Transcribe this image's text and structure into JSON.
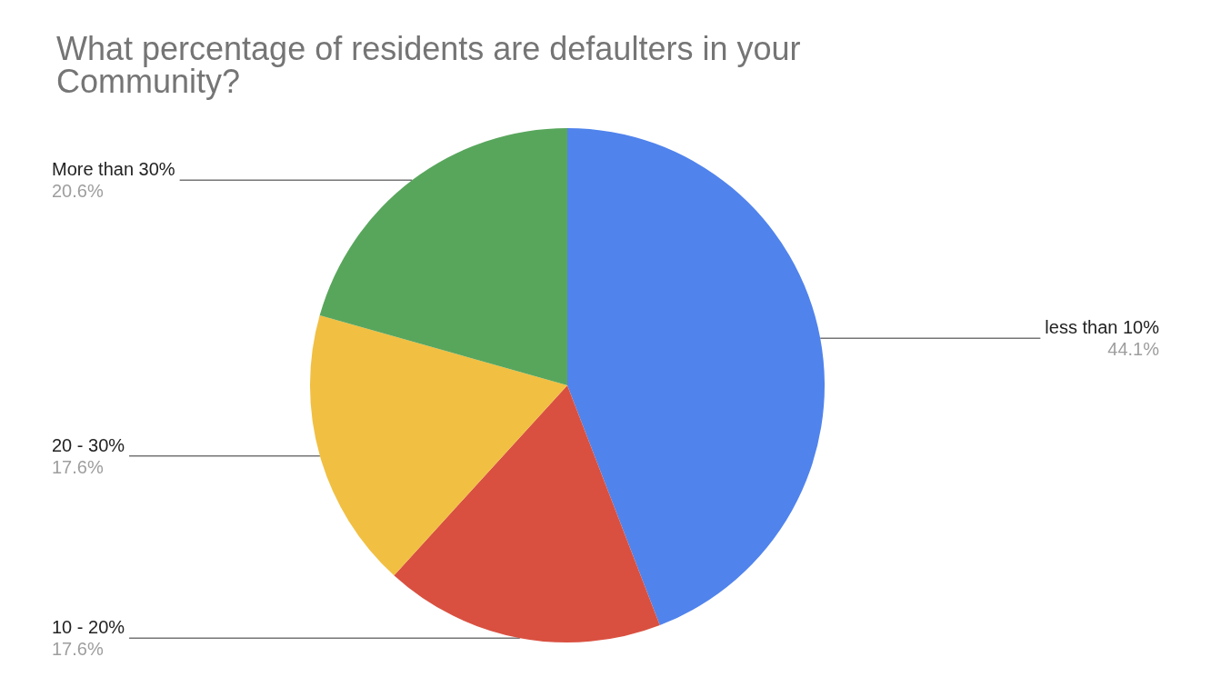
{
  "chart_data": {
    "type": "pie",
    "title": "What percentage of residents are defaulters in your Community?",
    "categories": [
      "less than 10%",
      "10 - 20%",
      "20 - 30%",
      "More than 30%"
    ],
    "values": [
      44.1,
      17.6,
      17.6,
      20.6
    ],
    "value_labels": [
      "44.1%",
      "17.6%",
      "17.6%",
      "20.6%"
    ],
    "colors": [
      "#5083ec",
      "#d95040",
      "#f1bf42",
      "#58a65c"
    ],
    "legend": false
  }
}
